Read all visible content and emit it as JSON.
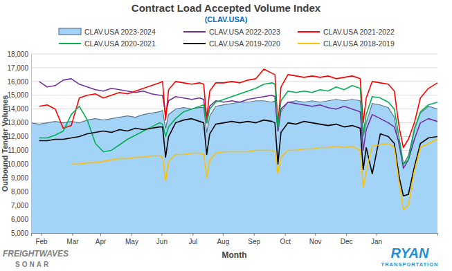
{
  "chart_data": {
    "type": "line",
    "title": "Contract Load Accepted Volume Index",
    "subtitle": "(CLAV.USA)",
    "x_label": "Month",
    "y_label": "Outbound Tender Volumes",
    "annotations": [
      "FREIGHTWAVES",
      "SONAR",
      "RYAN",
      "TRANSPORTATION"
    ],
    "legend": "top",
    "grid": true,
    "xlim": [
      0,
      405
    ],
    "xticks": [
      {
        "value": 10,
        "label": "Feb"
      },
      {
        "value": 41,
        "label": "Mar"
      },
      {
        "value": 69,
        "label": "Apr"
      },
      {
        "value": 100,
        "label": "May"
      },
      {
        "value": 130,
        "label": "Jun"
      },
      {
        "value": 161,
        "label": "Jul"
      },
      {
        "value": 191,
        "label": "Aug"
      },
      {
        "value": 222,
        "label": "Sep"
      },
      {
        "value": 253,
        "label": "Oct"
      },
      {
        "value": 283,
        "label": "Nov"
      },
      {
        "value": 314,
        "label": "Dec"
      },
      {
        "value": 344,
        "label": "Jan"
      }
    ],
    "ylim": [
      5000,
      18000
    ],
    "yticks": [
      {
        "value": 5000,
        "label": "5,000"
      },
      {
        "value": 6000,
        "label": "6,000"
      },
      {
        "value": 7000,
        "label": "7,000"
      },
      {
        "value": 8000,
        "label": "8,000"
      },
      {
        "value": 9000,
        "label": "9,000"
      },
      {
        "value": 10000,
        "label": "10,000"
      },
      {
        "value": 11000,
        "label": "11,000"
      },
      {
        "value": 12000,
        "label": "12,000"
      },
      {
        "value": 13000,
        "label": "13,000"
      },
      {
        "value": 14000,
        "label": "14,000"
      },
      {
        "value": 15000,
        "label": "15,000"
      },
      {
        "value": 16000,
        "label": "16,000"
      },
      {
        "value": 17000,
        "label": "17,000"
      },
      {
        "value": 18000,
        "label": "18,000"
      }
    ],
    "x": [
      0,
      8,
      16,
      24,
      32,
      40,
      48,
      56,
      64,
      72,
      80,
      88,
      96,
      104,
      112,
      120,
      128,
      131,
      134,
      137,
      144,
      152,
      160,
      168,
      172,
      175,
      178,
      184,
      192,
      200,
      208,
      216,
      224,
      232,
      240,
      243,
      246,
      249,
      256,
      264,
      272,
      280,
      288,
      296,
      304,
      312,
      320,
      328,
      331,
      334,
      340,
      348,
      356,
      362,
      367,
      371,
      376,
      382,
      388,
      396,
      405
    ],
    "series": [
      {
        "name": "CLAV.USA 2023-2024",
        "type": "area",
        "color": "#a3d3f7",
        "values": [
          13000,
          12900,
          13000,
          13100,
          13000,
          13100,
          13000,
          13200,
          13300,
          13200,
          13300,
          13400,
          13500,
          13400,
          13600,
          13700,
          13800,
          13900,
          12600,
          13600,
          14000,
          14100,
          14000,
          14100,
          14100,
          12300,
          13500,
          14200,
          14300,
          14400,
          14500,
          14500,
          14600,
          14600,
          14500,
          14600,
          12400,
          13800,
          14500,
          14600,
          14500,
          14600,
          14500,
          14600,
          14700,
          14600,
          14700,
          14600,
          12000,
          13000,
          14400,
          14300,
          14100,
          13400,
          11200,
          10000,
          10600,
          12600,
          13700,
          14200,
          14000
        ]
      },
      {
        "name": "CLAV.USA 2022-2023",
        "type": "line",
        "color": "#7030a0",
        "values": [
          null,
          16000,
          15600,
          15700,
          16100,
          16200,
          15800,
          15600,
          15400,
          15300,
          15500,
          15400,
          15300,
          15200,
          15300,
          15100,
          15000,
          15000,
          13600,
          14600,
          14900,
          14800,
          14700,
          14800,
          14700,
          13000,
          14200,
          14600,
          14500,
          14600,
          14500,
          14700,
          14800,
          14900,
          15000,
          14900,
          12400,
          14000,
          14500,
          14400,
          14300,
          14200,
          14300,
          14100,
          14000,
          14200,
          14000,
          13800,
          11000,
          12500,
          13600,
          13300,
          13000,
          12700,
          11500,
          9700,
          10300,
          11800,
          13000,
          13300,
          13100
        ]
      },
      {
        "name": "CLAV.USA 2021-2022",
        "type": "line",
        "color": "#ff0000",
        "values": [
          null,
          14200,
          14300,
          14000,
          12600,
          12800,
          14800,
          15000,
          15100,
          14800,
          15000,
          15200,
          15100,
          15300,
          15500,
          15700,
          15900,
          16000,
          13200,
          15400,
          16000,
          15900,
          15800,
          15900,
          15800,
          13300,
          15300,
          15900,
          15900,
          16000,
          15900,
          16100,
          16200,
          16900,
          16600,
          16500,
          12800,
          15600,
          16500,
          16400,
          16300,
          16400,
          16300,
          16400,
          16200,
          16300,
          16400,
          16200,
          13000,
          14800,
          16000,
          15900,
          15800,
          15300,
          12600,
          11200,
          11800,
          13000,
          14800,
          15500,
          15900
        ]
      },
      {
        "name": "CLAV.USA 2020-2021",
        "type": "line",
        "color": "#00b050",
        "values": [
          null,
          11900,
          11900,
          12100,
          12400,
          13600,
          14200,
          13200,
          11500,
          10900,
          11000,
          11400,
          11800,
          12100,
          12400,
          12700,
          13000,
          12900,
          12000,
          12700,
          13300,
          13800,
          14000,
          14200,
          14300,
          13000,
          14000,
          14500,
          14700,
          14900,
          15100,
          15300,
          15500,
          15800,
          15900,
          15800,
          12600,
          14600,
          15300,
          15200,
          15300,
          15200,
          15400,
          15300,
          15600,
          15400,
          15700,
          15500,
          12200,
          13600,
          14900,
          14800,
          14500,
          14000,
          11800,
          10000,
          10300,
          12500,
          13800,
          14300,
          14500
        ]
      },
      {
        "name": "CLAV.USA 2019-2020",
        "type": "line",
        "color": "#000000",
        "values": [
          null,
          11700,
          11700,
          11800,
          11800,
          11900,
          12000,
          12200,
          12300,
          12400,
          12300,
          12500,
          12400,
          12600,
          12500,
          12600,
          12700,
          12700,
          10500,
          12000,
          13000,
          13200,
          13300,
          13100,
          13000,
          10700,
          12200,
          12900,
          13000,
          13100,
          13000,
          13100,
          13000,
          13200,
          13100,
          13000,
          10000,
          12300,
          13000,
          12900,
          13100,
          13000,
          12900,
          12800,
          12900,
          12700,
          12800,
          12600,
          9600,
          11200,
          9300,
          12200,
          12000,
          11500,
          9000,
          7700,
          7800,
          9800,
          11500,
          11900,
          12000
        ]
      },
      {
        "name": "CLAV.USA 2018-2019",
        "type": "line",
        "color": "#ffc000",
        "values": [
          null,
          null,
          null,
          null,
          null,
          10000,
          10000,
          10100,
          10100,
          10200,
          10300,
          10400,
          10400,
          10500,
          10500,
          10600,
          10600,
          10500,
          8800,
          10200,
          10700,
          10700,
          10800,
          10800,
          10700,
          9000,
          10300,
          10800,
          10900,
          10900,
          10900,
          10900,
          11000,
          11000,
          11000,
          10900,
          9300,
          10500,
          11000,
          11000,
          11100,
          11100,
          11200,
          11200,
          11300,
          11200,
          11300,
          11000,
          8300,
          9500,
          11300,
          11400,
          11500,
          11200,
          8500,
          6700,
          7000,
          9500,
          11200,
          11500,
          11800
        ]
      }
    ]
  }
}
